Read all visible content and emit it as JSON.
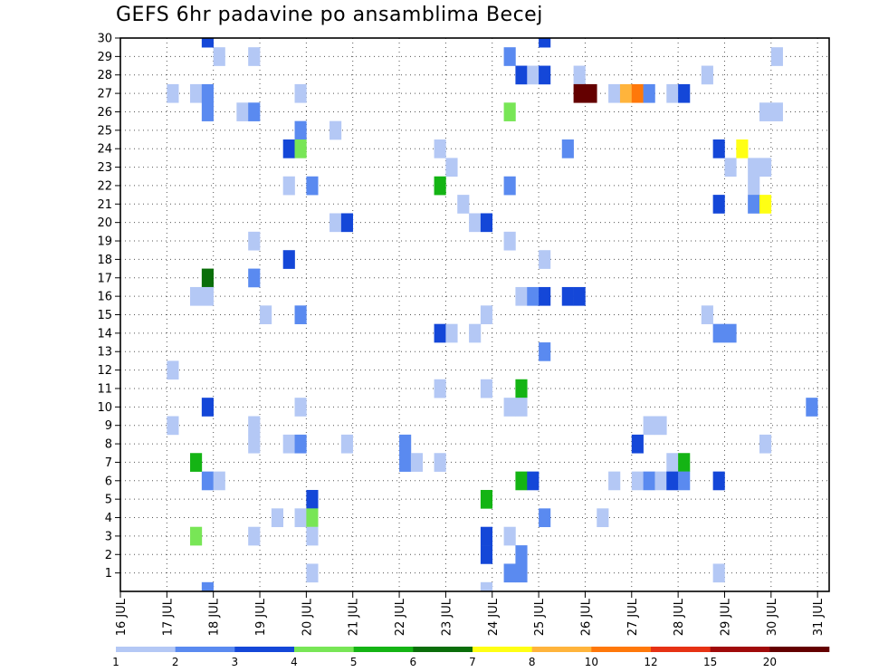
{
  "title": "GEFS 6hr padavine po ansamblima Becej",
  "chart_data": {
    "type": "heatmap",
    "title": "GEFS 6hr padavine po ansamblima Becej",
    "xlim": [
      16,
      31.25
    ],
    "ylim": [
      0,
      30
    ],
    "grid": true,
    "x_ticks": [
      {
        "value": 16,
        "label": "16 JUL"
      },
      {
        "value": 17,
        "label": "17 JUL"
      },
      {
        "value": 18,
        "label": "18 JUL"
      },
      {
        "value": 19,
        "label": "19 JUL"
      },
      {
        "value": 20,
        "label": "20 JUL"
      },
      {
        "value": 21,
        "label": "21 JUL"
      },
      {
        "value": 22,
        "label": "22 JUL"
      },
      {
        "value": 23,
        "label": "23 JUL"
      },
      {
        "value": 24,
        "label": "24 JUL"
      },
      {
        "value": 25,
        "label": "25 JUL"
      },
      {
        "value": 26,
        "label": "26 JUL"
      },
      {
        "value": 27,
        "label": "27 JUL"
      },
      {
        "value": 28,
        "label": "28 JUL"
      },
      {
        "value": 29,
        "label": "29 JUL"
      },
      {
        "value": 30,
        "label": "30 JUL"
      },
      {
        "value": 31,
        "label": "31 JUL"
      }
    ],
    "y_ticks": [
      "1",
      "2",
      "3",
      "4",
      "5",
      "6",
      "7",
      "8",
      "9",
      "10",
      "11",
      "12",
      "13",
      "14",
      "15",
      "16",
      "17",
      "18",
      "19",
      "20",
      "21",
      "22",
      "23",
      "24",
      "25",
      "26",
      "27",
      "28",
      "29",
      "30"
    ],
    "color_levels": [
      "1",
      "2",
      "3",
      "4",
      "5",
      "6",
      "7",
      "8",
      "10",
      "12",
      "15",
      "20"
    ],
    "colors": [
      "#b4c8f5",
      "#5a8af0",
      "#1447d8",
      "#78e656",
      "#14b414",
      "#0a6e0a",
      "#ffff14",
      "#ffb43c",
      "#ff780a",
      "#e63214",
      "#a00a0a",
      "#640000"
    ],
    "cells": [
      {
        "x": 17.75,
        "y": 30,
        "c": 2
      },
      {
        "x": 25,
        "y": 30,
        "c": 2
      },
      {
        "x": 18,
        "y": 29,
        "c": 0
      },
      {
        "x": 18.75,
        "y": 29,
        "c": 0
      },
      {
        "x": 24.25,
        "y": 29,
        "c": 1
      },
      {
        "x": 30,
        "y": 29,
        "c": 0
      },
      {
        "x": 24.5,
        "y": 28,
        "c": 2
      },
      {
        "x": 24.75,
        "y": 28,
        "c": 0
      },
      {
        "x": 25,
        "y": 28,
        "c": 2
      },
      {
        "x": 25.75,
        "y": 28,
        "c": 0
      },
      {
        "x": 28.5,
        "y": 28,
        "c": 0
      },
      {
        "x": 17,
        "y": 27,
        "c": 0
      },
      {
        "x": 17.5,
        "y": 27,
        "c": 0
      },
      {
        "x": 17.75,
        "y": 27,
        "c": 1
      },
      {
        "x": 19.75,
        "y": 27,
        "c": 0
      },
      {
        "x": 25.75,
        "y": 27,
        "c": 11
      },
      {
        "x": 26,
        "y": 27,
        "c": 11
      },
      {
        "x": 26.5,
        "y": 27,
        "c": 0
      },
      {
        "x": 26.75,
        "y": 27,
        "c": 7
      },
      {
        "x": 27,
        "y": 27,
        "c": 8
      },
      {
        "x": 27.25,
        "y": 27,
        "c": 1
      },
      {
        "x": 27.75,
        "y": 27,
        "c": 0
      },
      {
        "x": 28,
        "y": 27,
        "c": 2
      },
      {
        "x": 17.75,
        "y": 26,
        "c": 1
      },
      {
        "x": 18.5,
        "y": 26,
        "c": 0
      },
      {
        "x": 18.75,
        "y": 26,
        "c": 1
      },
      {
        "x": 24.25,
        "y": 26,
        "c": 3
      },
      {
        "x": 29.75,
        "y": 26,
        "c": 0
      },
      {
        "x": 30,
        "y": 26,
        "c": 0
      },
      {
        "x": 19.75,
        "y": 25,
        "c": 1
      },
      {
        "x": 20.5,
        "y": 25,
        "c": 0
      },
      {
        "x": 19.5,
        "y": 24,
        "c": 2
      },
      {
        "x": 19.75,
        "y": 24,
        "c": 3
      },
      {
        "x": 22.75,
        "y": 24,
        "c": 0
      },
      {
        "x": 25.5,
        "y": 24,
        "c": 1
      },
      {
        "x": 28.75,
        "y": 24,
        "c": 2
      },
      {
        "x": 29.25,
        "y": 24,
        "c": 6
      },
      {
        "x": 23,
        "y": 23,
        "c": 0
      },
      {
        "x": 29,
        "y": 23,
        "c": 0
      },
      {
        "x": 29.5,
        "y": 23,
        "c": 0
      },
      {
        "x": 29.75,
        "y": 23,
        "c": 0
      },
      {
        "x": 19.5,
        "y": 22,
        "c": 0
      },
      {
        "x": 20,
        "y": 22,
        "c": 1
      },
      {
        "x": 22.75,
        "y": 22,
        "c": 4
      },
      {
        "x": 24.25,
        "y": 22,
        "c": 1
      },
      {
        "x": 29.5,
        "y": 22,
        "c": 0
      },
      {
        "x": 23.25,
        "y": 21,
        "c": 0
      },
      {
        "x": 28.75,
        "y": 21,
        "c": 2
      },
      {
        "x": 29.5,
        "y": 21,
        "c": 1
      },
      {
        "x": 29.75,
        "y": 21,
        "c": 6
      },
      {
        "x": 20.5,
        "y": 20,
        "c": 0
      },
      {
        "x": 20.75,
        "y": 20,
        "c": 2
      },
      {
        "x": 23.5,
        "y": 20,
        "c": 0
      },
      {
        "x": 23.75,
        "y": 20,
        "c": 2
      },
      {
        "x": 18.75,
        "y": 19,
        "c": 0
      },
      {
        "x": 24.25,
        "y": 19,
        "c": 0
      },
      {
        "x": 19.5,
        "y": 18,
        "c": 2
      },
      {
        "x": 25,
        "y": 18,
        "c": 0
      },
      {
        "x": 17.75,
        "y": 17,
        "c": 5
      },
      {
        "x": 18.75,
        "y": 17,
        "c": 1
      },
      {
        "x": 17.5,
        "y": 16,
        "c": 0
      },
      {
        "x": 17.75,
        "y": 16,
        "c": 0
      },
      {
        "x": 24.5,
        "y": 16,
        "c": 0
      },
      {
        "x": 24.75,
        "y": 16,
        "c": 1
      },
      {
        "x": 25,
        "y": 16,
        "c": 2
      },
      {
        "x": 25.5,
        "y": 16,
        "c": 2
      },
      {
        "x": 25.75,
        "y": 16,
        "c": 2
      },
      {
        "x": 19,
        "y": 15,
        "c": 0
      },
      {
        "x": 19.75,
        "y": 15,
        "c": 1
      },
      {
        "x": 23.75,
        "y": 15,
        "c": 0
      },
      {
        "x": 28.5,
        "y": 15,
        "c": 0
      },
      {
        "x": 22.75,
        "y": 14,
        "c": 2
      },
      {
        "x": 23,
        "y": 14,
        "c": 0
      },
      {
        "x": 23.5,
        "y": 14,
        "c": 0
      },
      {
        "x": 28.75,
        "y": 14,
        "c": 1
      },
      {
        "x": 29,
        "y": 14,
        "c": 1
      },
      {
        "x": 25,
        "y": 13,
        "c": 1
      },
      {
        "x": 17,
        "y": 12,
        "c": 0
      },
      {
        "x": 22.75,
        "y": 11,
        "c": 0
      },
      {
        "x": 23.75,
        "y": 11,
        "c": 0
      },
      {
        "x": 24.5,
        "y": 11,
        "c": 4
      },
      {
        "x": 17.75,
        "y": 10,
        "c": 2
      },
      {
        "x": 19.75,
        "y": 10,
        "c": 0
      },
      {
        "x": 24.25,
        "y": 10,
        "c": 0
      },
      {
        "x": 24.5,
        "y": 10,
        "c": 0
      },
      {
        "x": 30.75,
        "y": 10,
        "c": 1
      },
      {
        "x": 17,
        "y": 9,
        "c": 0
      },
      {
        "x": 18.75,
        "y": 9,
        "c": 0
      },
      {
        "x": 27.25,
        "y": 9,
        "c": 0
      },
      {
        "x": 27.5,
        "y": 9,
        "c": 0
      },
      {
        "x": 18.75,
        "y": 8,
        "c": 0
      },
      {
        "x": 19.5,
        "y": 8,
        "c": 0
      },
      {
        "x": 19.75,
        "y": 8,
        "c": 1
      },
      {
        "x": 20.75,
        "y": 8,
        "c": 0
      },
      {
        "x": 22,
        "y": 8,
        "c": 1
      },
      {
        "x": 27,
        "y": 8,
        "c": 2
      },
      {
        "x": 29.75,
        "y": 8,
        "c": 0
      },
      {
        "x": 17.5,
        "y": 7,
        "c": 4
      },
      {
        "x": 22,
        "y": 7,
        "c": 1
      },
      {
        "x": 22.25,
        "y": 7,
        "c": 0
      },
      {
        "x": 22.75,
        "y": 7,
        "c": 0
      },
      {
        "x": 27.75,
        "y": 7,
        "c": 0
      },
      {
        "x": 28,
        "y": 7,
        "c": 4
      },
      {
        "x": 17.75,
        "y": 6,
        "c": 1
      },
      {
        "x": 18,
        "y": 6,
        "c": 0
      },
      {
        "x": 24.5,
        "y": 6,
        "c": 4
      },
      {
        "x": 24.75,
        "y": 6,
        "c": 2
      },
      {
        "x": 26.5,
        "y": 6,
        "c": 0
      },
      {
        "x": 27,
        "y": 6,
        "c": 0
      },
      {
        "x": 27.25,
        "y": 6,
        "c": 1
      },
      {
        "x": 27.5,
        "y": 6,
        "c": 0
      },
      {
        "x": 27.75,
        "y": 6,
        "c": 2
      },
      {
        "x": 28,
        "y": 6,
        "c": 1
      },
      {
        "x": 28.75,
        "y": 6,
        "c": 2
      },
      {
        "x": 20,
        "y": 5,
        "c": 2
      },
      {
        "x": 23.75,
        "y": 5,
        "c": 4
      },
      {
        "x": 19.25,
        "y": 4,
        "c": 0
      },
      {
        "x": 19.75,
        "y": 4,
        "c": 0
      },
      {
        "x": 20,
        "y": 4,
        "c": 3
      },
      {
        "x": 25,
        "y": 4,
        "c": 1
      },
      {
        "x": 26.25,
        "y": 4,
        "c": 0
      },
      {
        "x": 17.5,
        "y": 3,
        "c": 3
      },
      {
        "x": 18.75,
        "y": 3,
        "c": 0
      },
      {
        "x": 20,
        "y": 3,
        "c": 0
      },
      {
        "x": 23.75,
        "y": 3,
        "c": 2
      },
      {
        "x": 24.25,
        "y": 3,
        "c": 0
      },
      {
        "x": 23.75,
        "y": 2,
        "c": 2
      },
      {
        "x": 24.5,
        "y": 2,
        "c": 1
      },
      {
        "x": 20,
        "y": 1,
        "c": 0
      },
      {
        "x": 24.25,
        "y": 1,
        "c": 1
      },
      {
        "x": 24.5,
        "y": 1,
        "c": 1
      },
      {
        "x": 28.75,
        "y": 1,
        "c": 0
      },
      {
        "x": 17.75,
        "y": 0,
        "c": 1
      },
      {
        "x": 23.75,
        "y": 0,
        "c": 0
      }
    ]
  }
}
